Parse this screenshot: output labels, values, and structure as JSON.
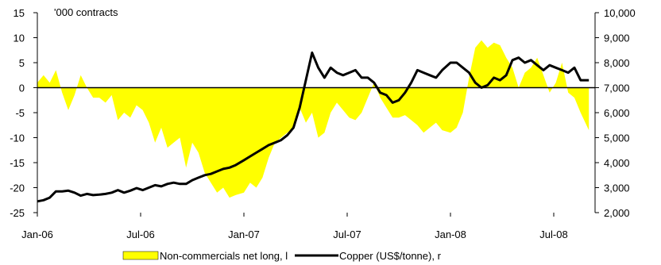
{
  "chart_data": {
    "type": "area+line",
    "unit_label": "'000 contracts",
    "x_ticks": [
      "Jan-06",
      "Jul-06",
      "Jan-07",
      "Jul-07",
      "Jan-08",
      "Jul-08"
    ],
    "x_range": [
      "2006-01",
      "2008-09"
    ],
    "left_axis": {
      "ticks": [
        "15",
        "10",
        "5",
        "0",
        "-5",
        "-10",
        "-15",
        "-20",
        "-25"
      ],
      "ylim": [
        -25,
        15
      ]
    },
    "right_axis": {
      "ticks": [
        "10,000",
        "9,000",
        "8,000",
        "7,000",
        "6,000",
        "5,000",
        "4,000",
        "3,000",
        "2,000"
      ],
      "ylim": [
        2000,
        10000
      ]
    },
    "colors": {
      "area": "#ffff00",
      "line": "#000000"
    },
    "legend": {
      "placement": "bottom"
    },
    "series": [
      {
        "name": "Non-commercials net long, l",
        "axis": "left",
        "kind": "area",
        "x": [
          2006.0,
          2006.03,
          2006.06,
          2006.09,
          2006.12,
          2006.15,
          2006.18,
          2006.21,
          2006.24,
          2006.27,
          2006.3,
          2006.33,
          2006.36,
          2006.39,
          2006.42,
          2006.45,
          2006.48,
          2006.51,
          2006.54,
          2006.57,
          2006.6,
          2006.63,
          2006.66,
          2006.69,
          2006.72,
          2006.75,
          2006.78,
          2006.81,
          2006.84,
          2006.87,
          2006.9,
          2006.93,
          2006.96,
          2007.0,
          2007.03,
          2007.06,
          2007.09,
          2007.12,
          2007.15,
          2007.18,
          2007.21,
          2007.24,
          2007.27,
          2007.3,
          2007.33,
          2007.36,
          2007.39,
          2007.42,
          2007.45,
          2007.48,
          2007.51,
          2007.54,
          2007.57,
          2007.6,
          2007.63,
          2007.66,
          2007.69,
          2007.72,
          2007.75,
          2007.78,
          2007.81,
          2007.84,
          2007.87,
          2007.9,
          2007.93,
          2007.96,
          2008.0,
          2008.03,
          2008.06,
          2008.09,
          2008.12,
          2008.15,
          2008.18,
          2008.21,
          2008.24,
          2008.27,
          2008.3,
          2008.33,
          2008.36,
          2008.39,
          2008.42,
          2008.45,
          2008.48,
          2008.51,
          2008.54,
          2008.57,
          2008.6,
          2008.63,
          2008.67
        ],
        "values": [
          1,
          2.5,
          1,
          3.5,
          -1,
          -4.5,
          -1.5,
          2.5,
          0,
          -2,
          -2,
          -3,
          -1.5,
          -6.5,
          -5,
          -6,
          -3.5,
          -4.5,
          -7,
          -11,
          -8,
          -12,
          -11,
          -10,
          -16,
          -11,
          -13,
          -17,
          -19,
          -21,
          -20,
          -22,
          -21.5,
          -21,
          -19,
          -20,
          -18,
          -14,
          -11,
          -10,
          -9,
          -8,
          -4,
          -7,
          -5,
          -10,
          -9,
          -5,
          -3,
          -4.5,
          -6,
          -6.5,
          -5,
          -2,
          1,
          -2,
          -4,
          -6,
          -6,
          -5.5,
          -6.5,
          -7.5,
          -9,
          -8,
          -7,
          -8.5,
          -9,
          -8,
          -5,
          2,
          8,
          9.5,
          8,
          9,
          8.5,
          6,
          4,
          0,
          3,
          4,
          6,
          2.5,
          -1,
          1,
          5,
          -1,
          -2,
          -5,
          -8.5
        ]
      },
      {
        "name": "Copper (US$/tonne), r",
        "axis": "right",
        "kind": "line",
        "x": [
          2006.0,
          2006.03,
          2006.06,
          2006.09,
          2006.12,
          2006.15,
          2006.18,
          2006.21,
          2006.24,
          2006.27,
          2006.3,
          2006.33,
          2006.36,
          2006.39,
          2006.42,
          2006.45,
          2006.48,
          2006.51,
          2006.54,
          2006.57,
          2006.6,
          2006.63,
          2006.66,
          2006.69,
          2006.72,
          2006.75,
          2006.78,
          2006.81,
          2006.84,
          2006.87,
          2006.9,
          2006.93,
          2006.96,
          2007.0,
          2007.03,
          2007.06,
          2007.09,
          2007.12,
          2007.15,
          2007.18,
          2007.21,
          2007.24,
          2007.27,
          2007.3,
          2007.33,
          2007.36,
          2007.39,
          2007.42,
          2007.45,
          2007.48,
          2007.51,
          2007.54,
          2007.57,
          2007.6,
          2007.63,
          2007.66,
          2007.69,
          2007.72,
          2007.75,
          2007.78,
          2007.81,
          2007.84,
          2007.87,
          2007.9,
          2007.93,
          2007.96,
          2008.0,
          2008.03,
          2008.06,
          2008.09,
          2008.12,
          2008.15,
          2008.18,
          2008.21,
          2008.24,
          2008.27,
          2008.3,
          2008.33,
          2008.36,
          2008.39,
          2008.42,
          2008.45,
          2008.48,
          2008.51,
          2008.54,
          2008.57,
          2008.6,
          2008.63,
          2008.67
        ],
        "values": [
          2450,
          2500,
          2600,
          2850,
          2850,
          2880,
          2800,
          2680,
          2750,
          2700,
          2720,
          2750,
          2800,
          2900,
          2800,
          2880,
          2980,
          2900,
          3000,
          3100,
          3050,
          3150,
          3200,
          3150,
          3150,
          3300,
          3400,
          3500,
          3550,
          3650,
          3750,
          3800,
          3900,
          4100,
          4250,
          4400,
          4550,
          4700,
          4800,
          4900,
          5100,
          5400,
          6200,
          7300,
          8400,
          7800,
          7400,
          7800,
          7600,
          7500,
          7600,
          7700,
          7400,
          7400,
          7200,
          6800,
          6700,
          6400,
          6500,
          6800,
          7200,
          7700,
          7600,
          7500,
          7400,
          7700,
          8000,
          8000,
          7800,
          7600,
          7200,
          7000,
          7100,
          7400,
          7300,
          7500,
          8100,
          8200,
          8000,
          8100,
          7900,
          7700,
          7900,
          7800,
          7700,
          7600,
          7800,
          7300,
          7300
        ]
      }
    ]
  }
}
